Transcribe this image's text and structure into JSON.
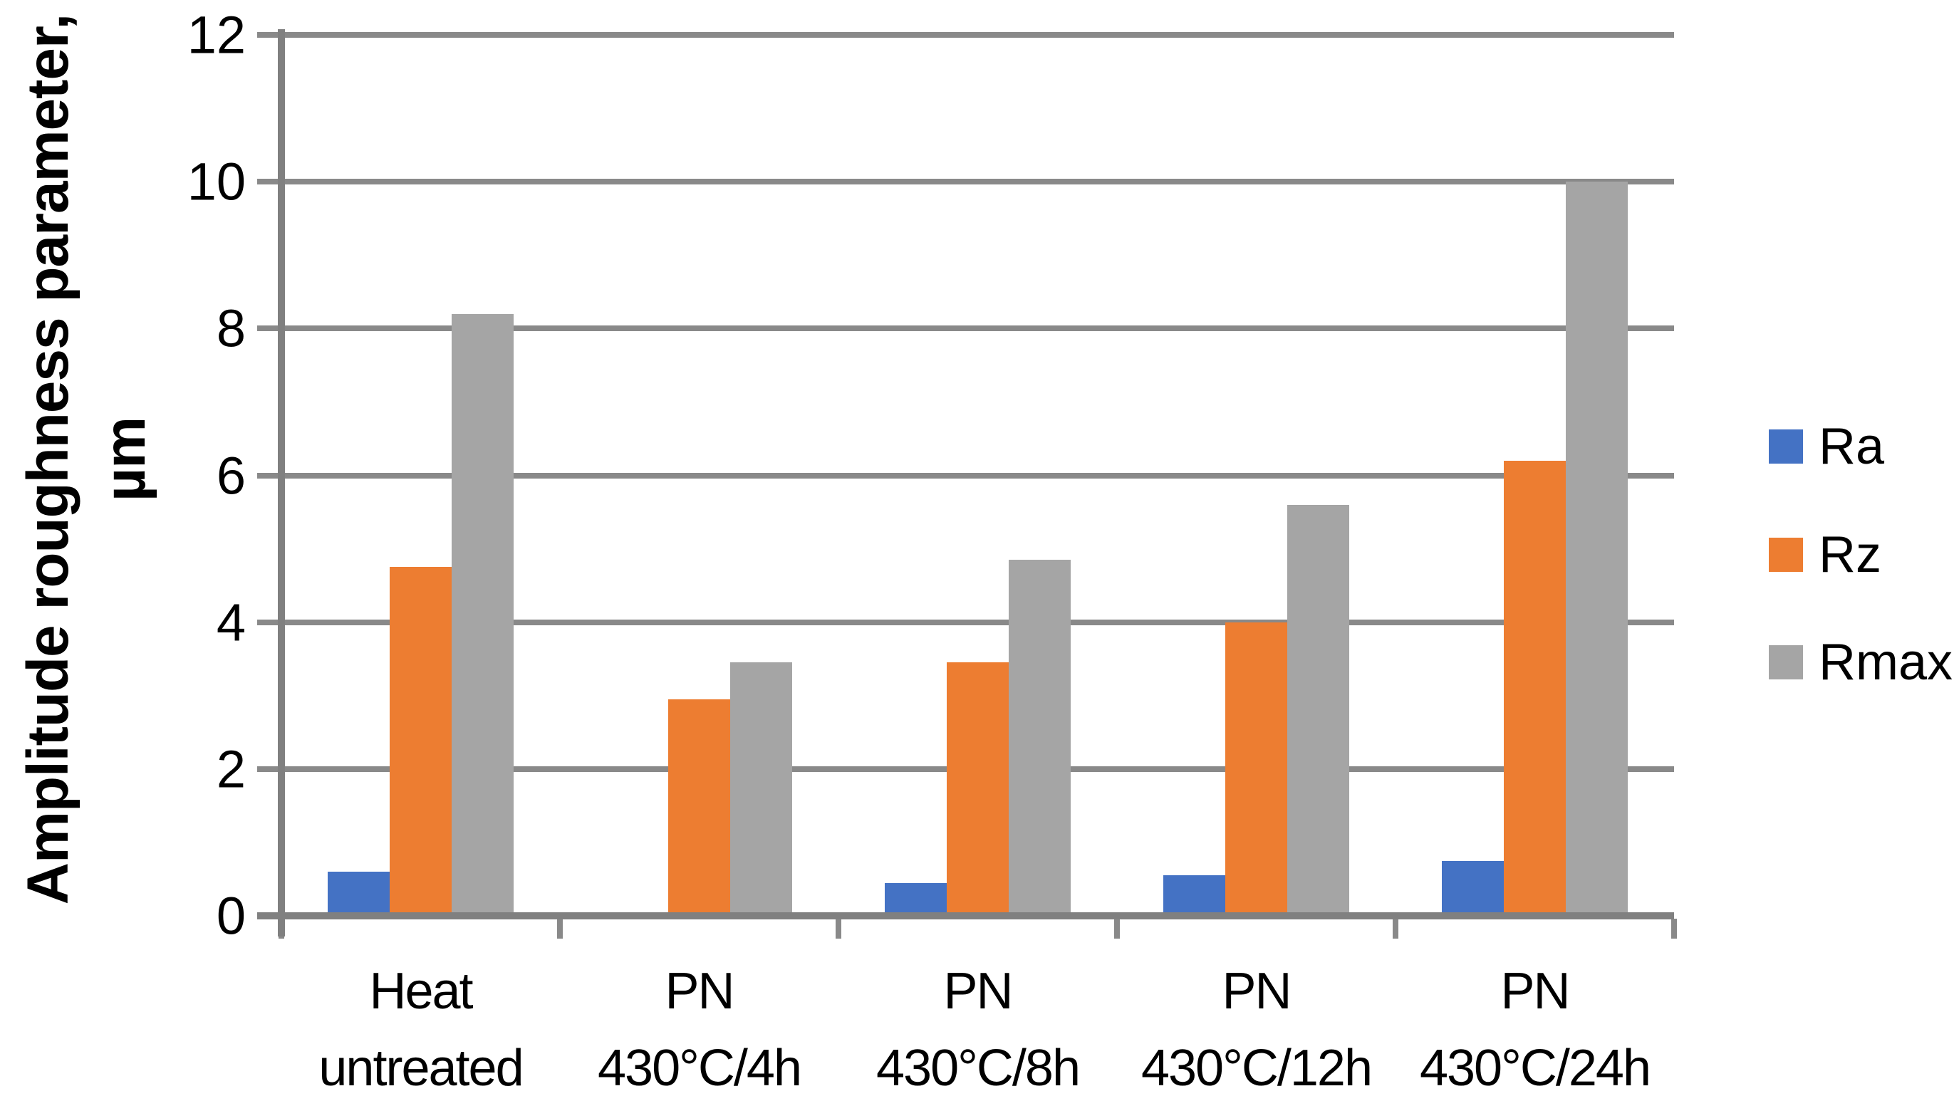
{
  "chart_data": {
    "type": "bar",
    "title": "",
    "ylabel_line1": "Amplitude roughness parameter,",
    "ylabel_line2": "µm",
    "xlabel": "",
    "ylim": [
      0,
      12
    ],
    "y_ticks": [
      0,
      2,
      4,
      6,
      8,
      10,
      12
    ],
    "grid": true,
    "legend_position": "right",
    "categories": [
      {
        "line1": "Heat",
        "line2": "untreated"
      },
      {
        "line1": "PN",
        "line2": "430°C/4h"
      },
      {
        "line1": "PN",
        "line2": "430°C/8h"
      },
      {
        "line1": "PN",
        "line2": "430°C/12h"
      },
      {
        "line1": "PN",
        "line2": "430°C/24h"
      }
    ],
    "series": [
      {
        "name": "Ra",
        "color": "#4472C4",
        "values": [
          0.6,
          0.05,
          0.45,
          0.55,
          0.75
        ]
      },
      {
        "name": "Rz",
        "color": "#ED7D31",
        "values": [
          4.75,
          2.95,
          3.45,
          4.0,
          6.2
        ]
      },
      {
        "name": "Rmax",
        "color": "#A5A5A5",
        "values": [
          8.2,
          3.45,
          4.85,
          5.6,
          10.0
        ]
      }
    ]
  },
  "style_colors": {
    "gridline": "#898989",
    "axis": "#808080",
    "text": "#000000",
    "background": "#FFFFFF"
  }
}
